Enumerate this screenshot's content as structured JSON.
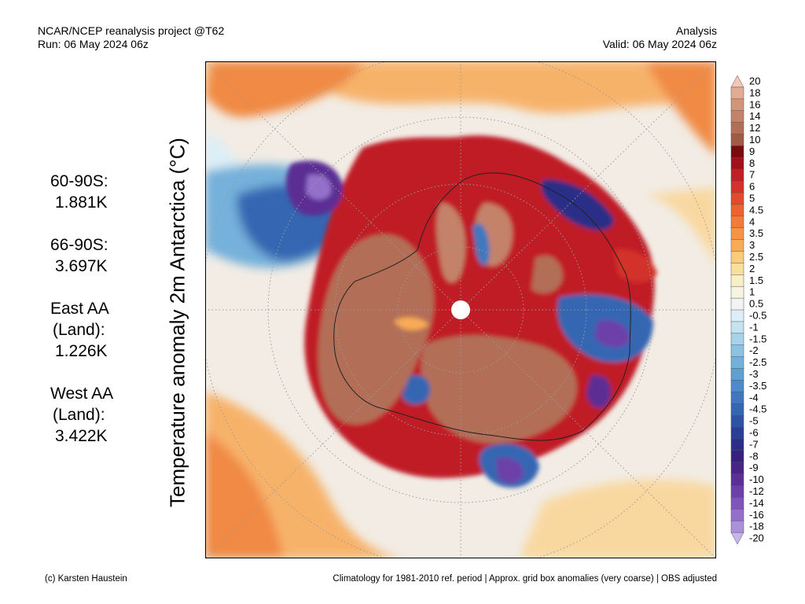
{
  "header": {
    "title_left": "NCAR/NCEP reanalysis project @T62",
    "run": "Run: 06 May 2024 06z",
    "title_right": "Analysis",
    "valid": "Valid: 06 May 2024 06z"
  },
  "y_axis_label": "Temperature anomaly 2m Antarctica (°C)",
  "stats": [
    {
      "lines": [
        "60-90S:",
        "1.881K"
      ]
    },
    {
      "lines": [
        "66-90S:",
        "3.697K"
      ]
    },
    {
      "lines": [
        "East AA",
        "(Land):",
        "1.226K"
      ]
    },
    {
      "lines": [
        "West AA",
        "(Land):",
        "3.422K"
      ]
    }
  ],
  "colorbar": {
    "labels": [
      "20",
      "18",
      "16",
      "14",
      "12",
      "10",
      "9",
      "8",
      "7",
      "6",
      "5",
      "4.5",
      "4",
      "3.5",
      "3",
      "2.5",
      "2",
      "1.5",
      "1",
      "0.5",
      "-0.5",
      "-1",
      "-1.5",
      "-2",
      "-2.5",
      "-3",
      "-3.5",
      "-4",
      "-4.5",
      "-5",
      "-6",
      "-7",
      "-8",
      "-9",
      "-10",
      "-12",
      "-14",
      "-16",
      "-18",
      "-20"
    ],
    "colors": [
      "#f2c7b8",
      "#e2ab94",
      "#d29578",
      "#c4826a",
      "#b36e58",
      "#a05a46",
      "#7a0c10",
      "#a4111b",
      "#c01f26",
      "#d2322b",
      "#e34a2e",
      "#ec6233",
      "#f27a3a",
      "#f59445",
      "#f8ab55",
      "#facb7a",
      "#fadf9c",
      "#f9efc6",
      "#f8f4e4",
      "#f3f3f3",
      "#dceef7",
      "#c4e2f0",
      "#a7d3ea",
      "#8cc3e2",
      "#74b1da",
      "#5f9fd1",
      "#4d8bc8",
      "#3f78bd",
      "#3566b2",
      "#2c54a4",
      "#293f93",
      "#2b2e86",
      "#35207c",
      "#482483",
      "#5b2f94",
      "#6d40a8",
      "#7f55ba",
      "#9470cb",
      "#ab90da",
      "#c6b4eb"
    ]
  },
  "footer": {
    "left": "(c) Karsten Haustein",
    "right": "Climatology for 1981-2010 ref. period | Approx. grid box anomalies (very coarse) | OBS adjusted"
  }
}
